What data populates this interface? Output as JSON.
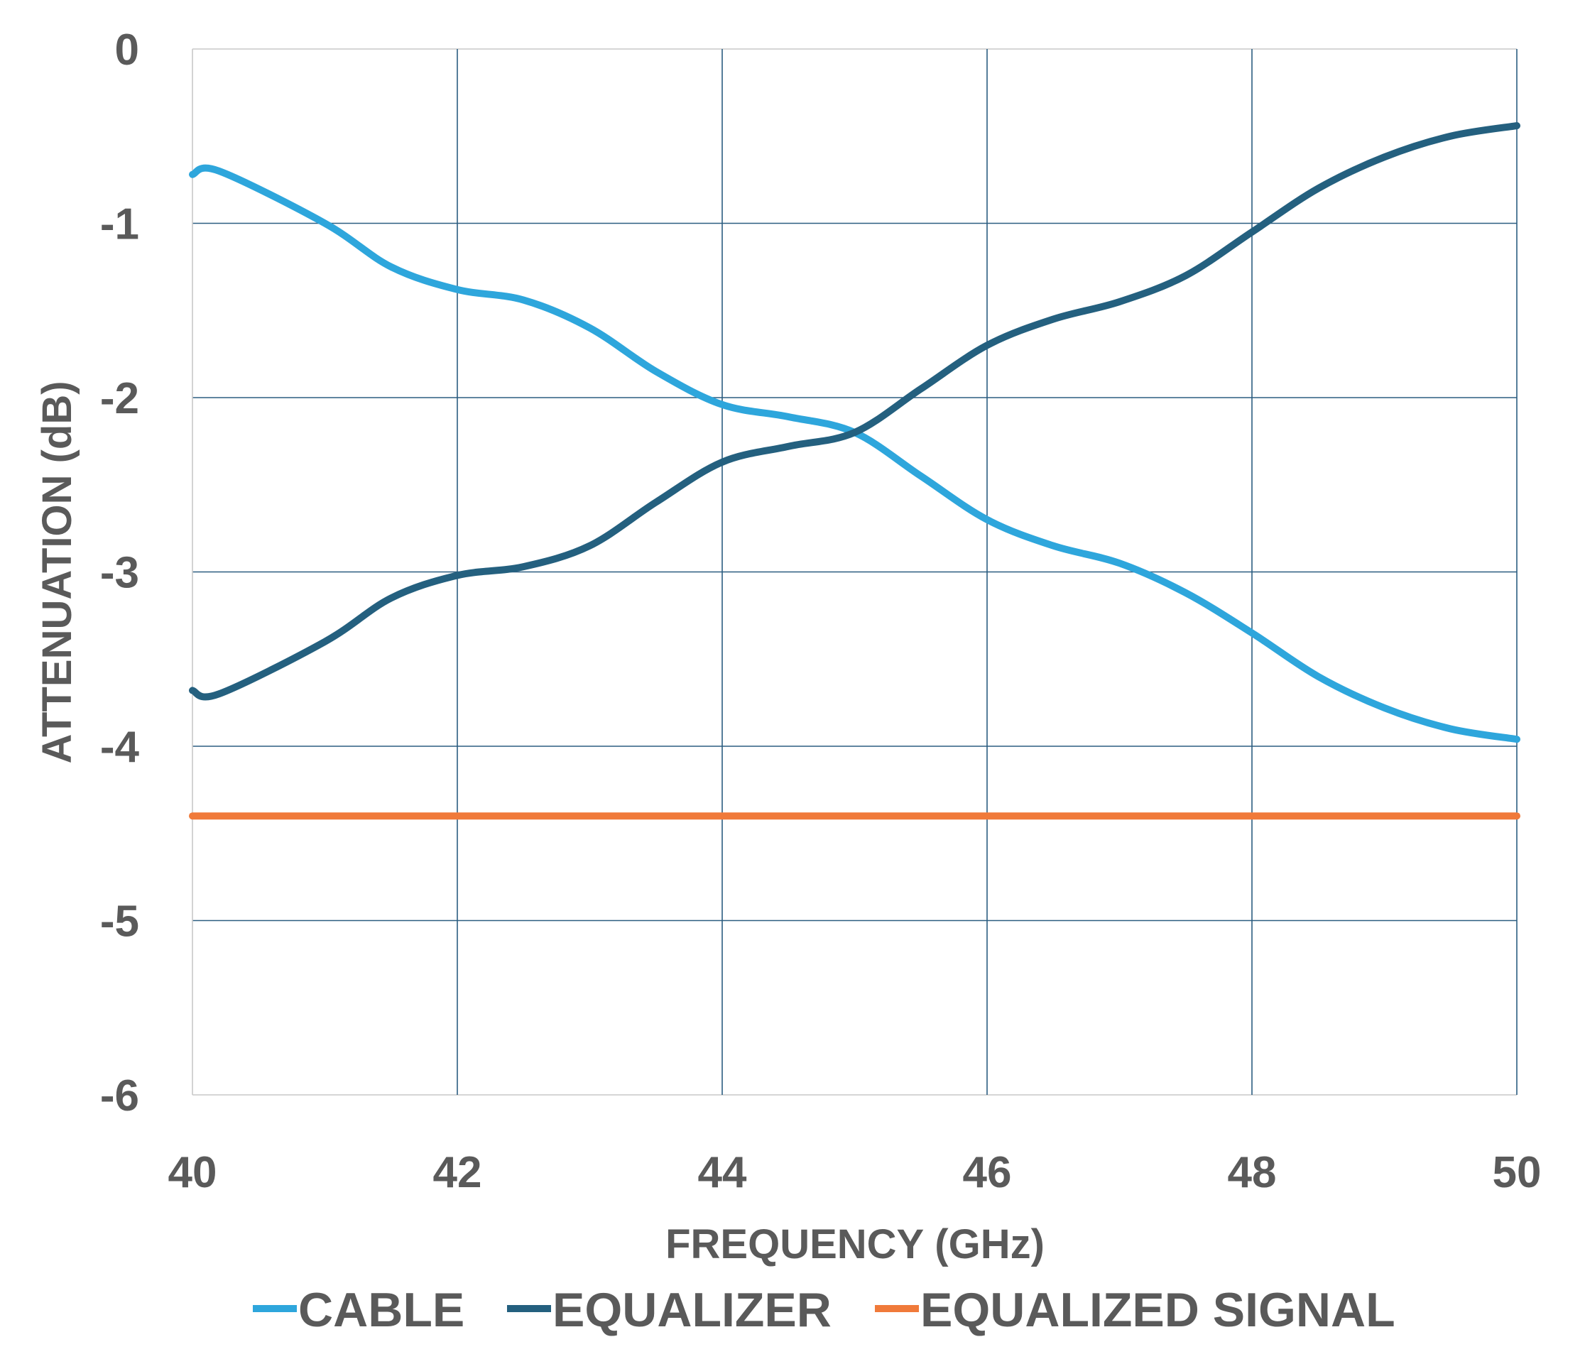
{
  "chart_data": {
    "type": "line",
    "title": "",
    "xlabel": "FREQUENCY (GHz)",
    "ylabel": "ATTENUATION (dB)",
    "xlim": [
      40,
      50
    ],
    "ylim": [
      -6,
      0
    ],
    "xticks": [
      "40",
      "42",
      "44",
      "46",
      "48",
      "50"
    ],
    "yticks": [
      "0",
      "-1",
      "-2",
      "-3",
      "-4",
      "-5",
      "-6"
    ],
    "grid": true,
    "legend_position": "bottom",
    "x": [
      40,
      40.2,
      41,
      41.5,
      42,
      42.5,
      43,
      43.5,
      44,
      44.5,
      45,
      45.5,
      46,
      46.5,
      47,
      47.5,
      48,
      48.5,
      49,
      49.5,
      50
    ],
    "series": [
      {
        "name": "CABLE",
        "color": "#2ea6dc",
        "values": [
          -0.72,
          -0.7,
          -1.0,
          -1.25,
          -1.38,
          -1.44,
          -1.6,
          -1.85,
          -2.04,
          -2.11,
          -2.2,
          -2.45,
          -2.7,
          -2.85,
          -2.95,
          -3.12,
          -3.35,
          -3.6,
          -3.78,
          -3.9,
          -3.96
        ]
      },
      {
        "name": "EQUALIZER",
        "color": "#24607f",
        "values": [
          -3.68,
          -3.7,
          -3.4,
          -3.15,
          -3.02,
          -2.97,
          -2.85,
          -2.6,
          -2.37,
          -2.28,
          -2.2,
          -1.95,
          -1.7,
          -1.55,
          -1.45,
          -1.3,
          -1.05,
          -0.8,
          -0.62,
          -0.5,
          -0.44
        ]
      },
      {
        "name": "EQUALIZED SIGNAL",
        "color": "#f07a3a",
        "values": [
          -4.4,
          -4.4,
          -4.4,
          -4.4,
          -4.4,
          -4.4,
          -4.4,
          -4.4,
          -4.4,
          -4.4,
          -4.4,
          -4.4,
          -4.4,
          -4.4,
          -4.4,
          -4.4,
          -4.4,
          -4.4,
          -4.4,
          -4.4,
          -4.4
        ]
      }
    ],
    "grid_color": "#2b5d80",
    "text_color": "#5a5a5a"
  }
}
